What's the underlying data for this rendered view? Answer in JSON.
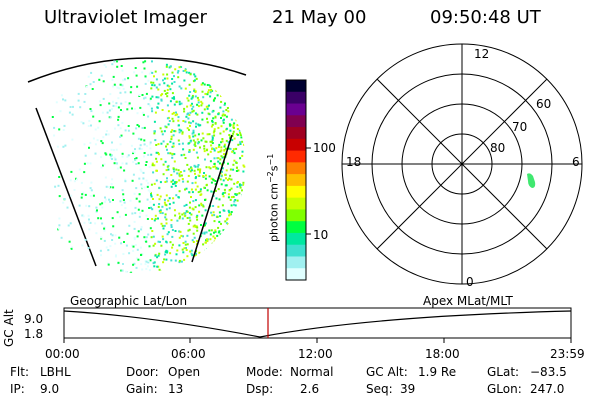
{
  "header": {
    "title": "Ultraviolet Imager",
    "date": "21 May 00",
    "time": "09:50:48 UT"
  },
  "colorbar": {
    "label_unit": "photon cm",
    "label_exp1": "−2",
    "label_mid": "s",
    "label_exp2": "−1",
    "ticks": [
      "100",
      "10"
    ],
    "colors": [
      "#000030",
      "#3a0066",
      "#6a0090",
      "#800050",
      "#a00020",
      "#c80000",
      "#ff2a00",
      "#ff8000",
      "#ffbf00",
      "#ffff00",
      "#c8ff00",
      "#80ff00",
      "#00ff40",
      "#00e8a0",
      "#40e0d0",
      "#a0f0f0",
      "#e0ffff"
    ]
  },
  "polar_plot": {
    "labels": {
      "top": "12",
      "left": "18",
      "right": "6",
      "bottom": "0"
    },
    "lat_rings": [
      "60",
      "70",
      "80"
    ],
    "auroral_color": "#40e870"
  },
  "timeline": {
    "left_title": "Geographic Lat/Lon",
    "right_title": "Apex MLat/MLT",
    "axis_label": "GC Alt",
    "alt_ticks": [
      "9.0",
      "1.8"
    ],
    "time_ticks": [
      "00:00",
      "06:00",
      "12:00",
      "18:00",
      "23:59"
    ],
    "current_marker_color": "#c00000"
  },
  "info": {
    "flt_label": "Flt:",
    "flt_value": "LBHL",
    "door_label": "Door:",
    "door_value": "Open",
    "mode_label": "Mode:",
    "mode_value": "Normal",
    "gcalt_label": "GC Alt:",
    "gcalt_value": "1.9 Re",
    "glat_label": "GLat:",
    "glat_value": "−83.5",
    "ip_label": "IP:",
    "ip_value": "9.0",
    "gain_label": "Gain:",
    "gain_value": "13",
    "dsp_label": "Dsp:",
    "dsp_value": "2.6",
    "seq_label": "Seq:",
    "seq_value": "39",
    "glon_label": "GLon:",
    "glon_value": "247.0"
  }
}
